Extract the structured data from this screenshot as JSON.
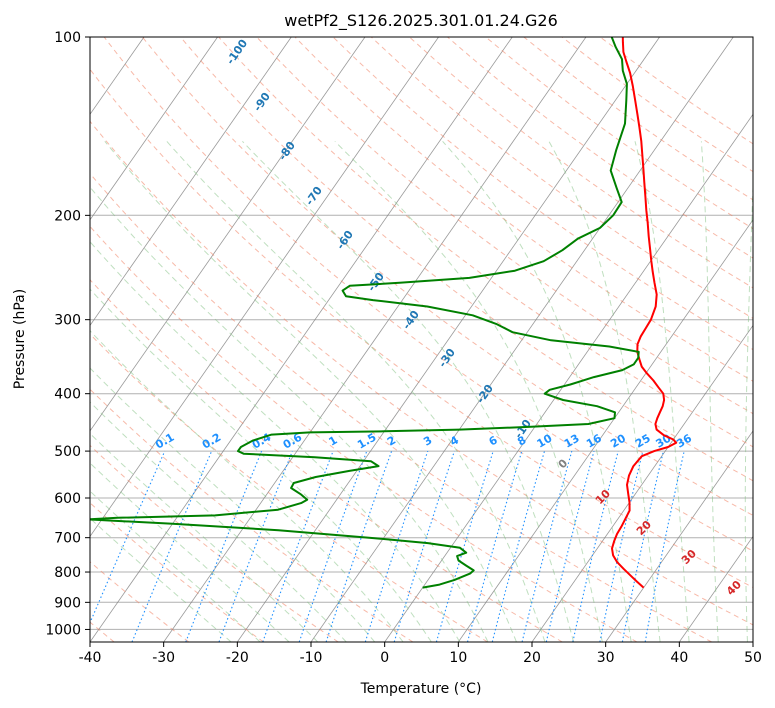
{
  "chart_data": {
    "type": "line",
    "chart_kind": "skew-T log-P diagram",
    "title": "wetPf2_S126.2025.301.01.24.G26",
    "xlabel": "Temperature (°C)",
    "ylabel": "Pressure (hPa)",
    "xlim": [
      -40,
      50
    ],
    "ylim": [
      1050,
      100
    ],
    "y_scale": "log",
    "x_ticks": [
      -40,
      -30,
      -20,
      -10,
      0,
      10,
      20,
      30,
      40,
      50
    ],
    "y_ticks": [
      100,
      200,
      300,
      400,
      500,
      600,
      700,
      800,
      900,
      1000
    ],
    "grid": true,
    "series": [
      {
        "key": "temperature",
        "color": "#ff0000",
        "points": [
          [
            30.0,
            850
          ],
          [
            28.5,
            830
          ],
          [
            27.0,
            810
          ],
          [
            25.5,
            790
          ],
          [
            24.0,
            770
          ],
          [
            22.8,
            750
          ],
          [
            22.0,
            730
          ],
          [
            21.6,
            710
          ],
          [
            21.3,
            690
          ],
          [
            21.2,
            670
          ],
          [
            21.0,
            650
          ],
          [
            20.8,
            630
          ],
          [
            20.0,
            610
          ],
          [
            19.0,
            590
          ],
          [
            18.0,
            570
          ],
          [
            17.4,
            550
          ],
          [
            17.1,
            530
          ],
          [
            17.3,
            510
          ],
          [
            18.5,
            500
          ],
          [
            20.0,
            492
          ],
          [
            20.7,
            484
          ],
          [
            20.0,
            478
          ],
          [
            18.3,
            470
          ],
          [
            16.8,
            460
          ],
          [
            16.1,
            450
          ],
          [
            15.8,
            440
          ],
          [
            15.6,
            430
          ],
          [
            15.4,
            420
          ],
          [
            15.0,
            410
          ],
          [
            14.3,
            400
          ],
          [
            13.0,
            390
          ],
          [
            11.7,
            380
          ],
          [
            10.2,
            370
          ],
          [
            8.8,
            360
          ],
          [
            7.8,
            350
          ],
          [
            6.8,
            340
          ],
          [
            6.1,
            330
          ],
          [
            5.8,
            320
          ],
          [
            5.7,
            310
          ],
          [
            5.6,
            300
          ],
          [
            5.0,
            285
          ],
          [
            4.0,
            272
          ],
          [
            2.6,
            260
          ],
          [
            1.3,
            249
          ],
          [
            0.0,
            238
          ],
          [
            -1.2,
            228
          ],
          [
            -2.6,
            217
          ],
          [
            -4.0,
            206
          ],
          [
            -5.4,
            196
          ],
          [
            -6.8,
            186
          ],
          [
            -8.3,
            176
          ],
          [
            -9.7,
            167
          ],
          [
            -11.2,
            158
          ],
          [
            -12.6,
            150
          ],
          [
            -14.2,
            142
          ],
          [
            -15.7,
            135
          ],
          [
            -17.3,
            128
          ],
          [
            -19.0,
            121
          ],
          [
            -20.6,
            115
          ],
          [
            -22.2,
            110
          ],
          [
            -23.5,
            106
          ],
          [
            -24.5,
            102
          ],
          [
            -25.0,
            100
          ]
        ]
      },
      {
        "key": "dewpoint",
        "color": "#008000",
        "points": [
          [
            0.0,
            850
          ],
          [
            2.0,
            840
          ],
          [
            3.6,
            825
          ],
          [
            5.1,
            805
          ],
          [
            5.3,
            795
          ],
          [
            3.8,
            780
          ],
          [
            2.3,
            765
          ],
          [
            1.7,
            752
          ],
          [
            2.6,
            742
          ],
          [
            1.3,
            728
          ],
          [
            -3.5,
            715
          ],
          [
            -12.0,
            700
          ],
          [
            -25.0,
            680
          ],
          [
            -40.0,
            663
          ],
          [
            -52.0,
            652
          ],
          [
            -48.0,
            648
          ],
          [
            -35.0,
            642
          ],
          [
            -27.0,
            628
          ],
          [
            -24.5,
            612
          ],
          [
            -24.0,
            604
          ],
          [
            -25.3,
            592
          ],
          [
            -27.3,
            577
          ],
          [
            -27.4,
            566
          ],
          [
            -25.0,
            553
          ],
          [
            -21.0,
            540
          ],
          [
            -17.5,
            530
          ],
          [
            -19.0,
            520
          ],
          [
            -27.0,
            512
          ],
          [
            -37.0,
            505
          ],
          [
            -38.0,
            500
          ],
          [
            -38.0,
            492
          ],
          [
            -37.0,
            480
          ],
          [
            -35.0,
            469
          ],
          [
            -30.0,
            465
          ],
          [
            -20.0,
            463
          ],
          [
            -10.0,
            460
          ],
          [
            -0.5,
            455
          ],
          [
            7.0,
            450
          ],
          [
            10.0,
            440
          ],
          [
            9.5,
            430
          ],
          [
            6.5,
            420
          ],
          [
            1.3,
            410
          ],
          [
            -1.8,
            400
          ],
          [
            -1.5,
            394
          ],
          [
            0.8,
            386
          ],
          [
            3.3,
            375
          ],
          [
            6.5,
            365
          ],
          [
            7.5,
            357
          ],
          [
            7.5,
            348
          ],
          [
            7.0,
            340
          ],
          [
            2.5,
            333
          ],
          [
            -6.0,
            325
          ],
          [
            -12.0,
            315
          ],
          [
            -15.0,
            305
          ],
          [
            -19.0,
            295
          ],
          [
            -26.0,
            285
          ],
          [
            -34.0,
            278
          ],
          [
            -38.0,
            274
          ],
          [
            -39.0,
            268
          ],
          [
            -38.5,
            263
          ],
          [
            -32.0,
            260
          ],
          [
            -23.0,
            255
          ],
          [
            -17.5,
            248
          ],
          [
            -14.5,
            239
          ],
          [
            -13.0,
            229
          ],
          [
            -12.0,
            219
          ],
          [
            -10.0,
            210
          ],
          [
            -9.4,
            200
          ],
          [
            -9.5,
            190
          ],
          [
            -11.5,
            180
          ],
          [
            -14.0,
            168
          ],
          [
            -15.2,
            155
          ],
          [
            -16.5,
            140
          ],
          [
            -18.5,
            128
          ],
          [
            -20.0,
            120
          ],
          [
            -21.8,
            114
          ],
          [
            -23.0,
            109
          ],
          [
            -25.0,
            104
          ],
          [
            -26.5,
            100
          ]
        ]
      }
    ],
    "annotations": {
      "dry_adiabat_labels": [
        -100,
        -90,
        -80,
        -70,
        -60,
        -50,
        -40,
        -30,
        -20,
        -10
      ],
      "mixing_ratio_labels": [
        "0.1",
        "0.2",
        "0.4",
        "0.6",
        "1",
        "1.5",
        "2",
        "3",
        "4",
        "6",
        "8",
        "10",
        "13",
        "16",
        "20",
        "25",
        "30",
        "36"
      ],
      "moist_adiabat_labels": [
        0,
        10,
        20,
        30,
        40
      ]
    },
    "colors": {
      "temperature": "#ff0000",
      "dewpoint": "#008000",
      "dry_adiabat": "#f08060",
      "moist_adiabat": "#7fbf7f",
      "mixing_ratio": "#1e90ff",
      "isotherm": "#808080",
      "dry_adiabat_label": "#1f77b4",
      "moist_adiabat_label": "#d62728"
    }
  }
}
